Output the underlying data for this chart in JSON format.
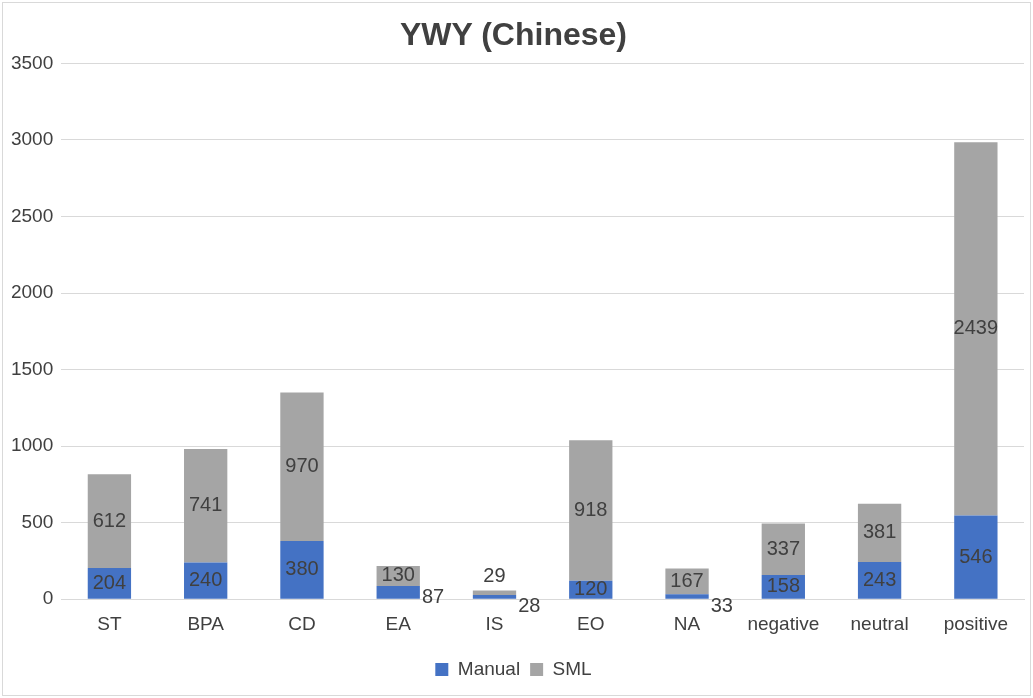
{
  "chart_data": {
    "type": "bar",
    "title": "YWY (Chinese)",
    "stacked": true,
    "categories": [
      "ST",
      "BPA",
      "CD",
      "EA",
      "IS",
      "EO",
      "NA",
      "negative",
      "neutral",
      "positive"
    ],
    "series": [
      {
        "name": "Manual",
        "color": "#4472c4",
        "values": [
          204,
          240,
          380,
          87,
          28,
          120,
          33,
          158,
          243,
          546
        ]
      },
      {
        "name": "SML",
        "color": "#a5a5a5",
        "values": [
          612,
          741,
          970,
          130,
          29,
          918,
          167,
          337,
          381,
          2439
        ]
      }
    ],
    "ylim": [
      0,
      3500
    ],
    "yticks": [
      0,
      500,
      1000,
      1500,
      2000,
      2500,
      3000,
      3500
    ],
    "grid": "y",
    "legend": "bottom",
    "data_labels": true
  }
}
